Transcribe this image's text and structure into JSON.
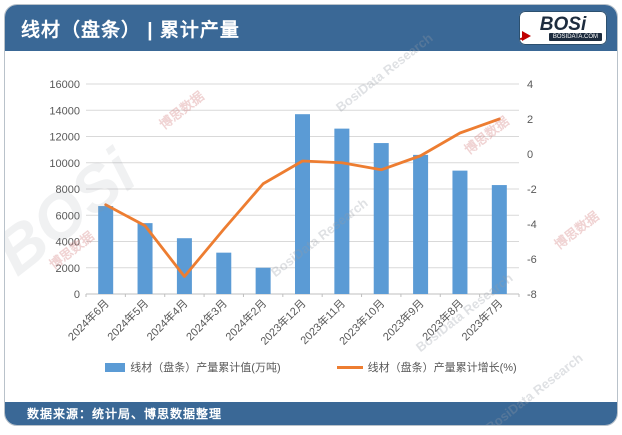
{
  "header": {
    "title": "线材（盘条） | 累计产量",
    "logo": {
      "text": "BOSi",
      "subtext": "BOSIDATA.COM"
    }
  },
  "footer": {
    "source": "数据来源：统计局、博思数据整理"
  },
  "watermark": {
    "cn": "博思数据",
    "en": "BosiData Research",
    "logo": "BOSi"
  },
  "colors": {
    "header_blue": "#3a6896",
    "bar_blue": "#5b9bd5",
    "line_orange": "#ed7d31",
    "axis_text": "#595959",
    "gridline": "#d9d9d9",
    "logo_red": "#c00000",
    "logo_navy": "#1d2c3e"
  },
  "chart_data": {
    "type": "bar",
    "title": "线材（盘条） | 累计产量",
    "categories": [
      "2024年6月",
      "2024年5月",
      "2024年4月",
      "2024年3月",
      "2024年2月",
      "2023年12月",
      "2023年11月",
      "2023年10月",
      "2023年9月",
      "2023年8月",
      "2023年7月"
    ],
    "series": [
      {
        "name": "线材（盘条）产量累计值(万吨)",
        "type": "bar",
        "axis": "left",
        "color": "#5b9bd5",
        "values": [
          6700,
          5400,
          4250,
          3150,
          2000,
          13700,
          12600,
          11500,
          10600,
          9400,
          8300
        ]
      },
      {
        "name": "线材（盘条）产量累计增长(%)",
        "type": "line",
        "axis": "right",
        "color": "#ed7d31",
        "values": [
          -2.9,
          -4.1,
          -7.0,
          -4.3,
          -1.7,
          -0.4,
          -0.5,
          -0.9,
          -0.1,
          1.2,
          2.0
        ]
      }
    ],
    "left_axis": {
      "min": 0,
      "max": 16000,
      "step": 2000,
      "ticks": [
        "0",
        "2000",
        "4000",
        "6000",
        "8000",
        "10000",
        "12000",
        "14000",
        "16000"
      ]
    },
    "right_axis": {
      "min": -8,
      "max": 4,
      "step": 2,
      "ticks": [
        "-8",
        "-6",
        "-4",
        "-2",
        "0",
        "2",
        "4"
      ]
    },
    "grid": true,
    "legend_position": "bottom",
    "xlabel": "",
    "ylabel": ""
  }
}
